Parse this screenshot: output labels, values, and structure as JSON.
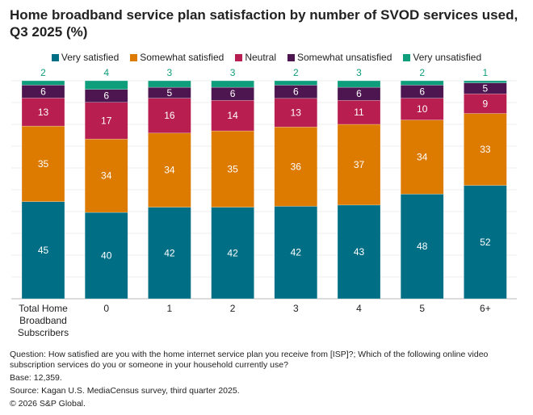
{
  "chart_data": {
    "type": "bar",
    "stacked": true,
    "title": "Home broadband service plan satisfaction by number of SVOD services used, Q3 2025 (%)",
    "categories": [
      "Total Home Broadband Subscribers",
      "0",
      "1",
      "2",
      "3",
      "4",
      "5",
      "6+"
    ],
    "series": [
      {
        "name": "Very satisfied",
        "color": "#006f86",
        "values": [
          45,
          40,
          42,
          42,
          42,
          43,
          48,
          52
        ]
      },
      {
        "name": "Somewhat satisfied",
        "color": "#dd7a00",
        "values": [
          35,
          34,
          34,
          35,
          36,
          37,
          34,
          33
        ]
      },
      {
        "name": "Neutral",
        "color": "#b81f50",
        "values": [
          13,
          17,
          16,
          14,
          13,
          11,
          10,
          9
        ]
      },
      {
        "name": "Somewhat unsatisfied",
        "color": "#4e1650",
        "values": [
          6,
          6,
          5,
          6,
          6,
          6,
          6,
          5
        ]
      },
      {
        "name": "Very unsatisfied",
        "color": "#0f9e7b",
        "values": [
          2,
          4,
          3,
          3,
          2,
          3,
          2,
          1
        ]
      }
    ],
    "ylim": [
      0,
      100
    ],
    "grid": true,
    "legend_position": "top"
  },
  "notes": {
    "question": "Question: How satisfied are you with the home internet service plan you receive from [ISP]?; Which of the following online video subscription services do you or someone in your household currently use?",
    "base": "Base: 12,359.",
    "source": "Source: Kagan U.S. MediaCensus survey, third quarter 2025.",
    "copyright": "© 2026 S&P Global."
  }
}
